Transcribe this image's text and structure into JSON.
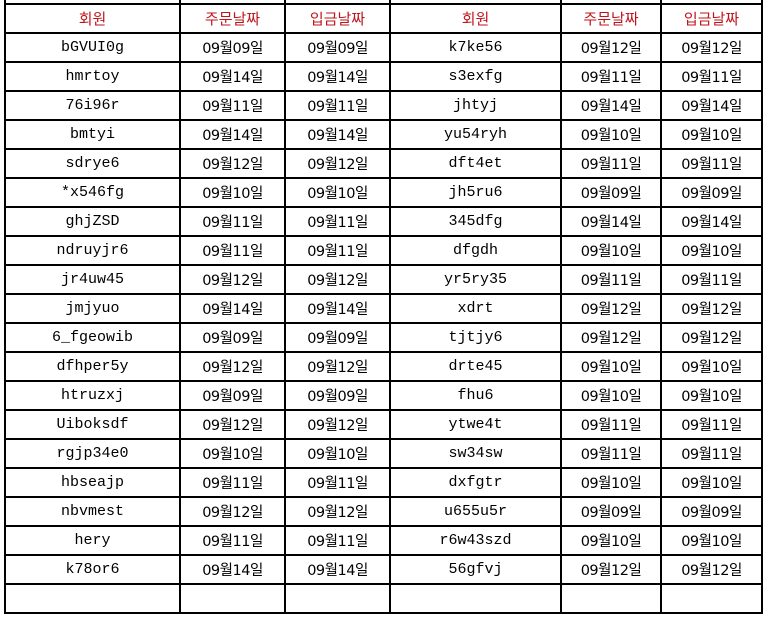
{
  "header": {
    "member": "회원",
    "order_date": "주문날짜",
    "payment_date": "입금날짜"
  },
  "colors": {
    "header_text": "#c0141c",
    "grid": "#000000"
  },
  "left_rows": [
    [
      "bGVUI0g",
      "09월09일",
      "09월09일"
    ],
    [
      "hmrtoy",
      "09월14일",
      "09월14일"
    ],
    [
      "76i96r",
      "09월11일",
      "09월11일"
    ],
    [
      "bmtyi",
      "09월14일",
      "09월14일"
    ],
    [
      "sdrye6",
      "09월12일",
      "09월12일"
    ],
    [
      "*x546fg",
      "09월10일",
      "09월10일"
    ],
    [
      "ghjZSD",
      "09월11일",
      "09월11일"
    ],
    [
      "ndruyjr6",
      "09월11일",
      "09월11일"
    ],
    [
      "jr4uw45",
      "09월12일",
      "09월12일"
    ],
    [
      "jmjyuo",
      "09월14일",
      "09월14일"
    ],
    [
      "6_fgeowib",
      "09월09일",
      "09월09일"
    ],
    [
      "dfhper5y",
      "09월12일",
      "09월12일"
    ],
    [
      "htruzxj",
      "09월09일",
      "09월09일"
    ],
    [
      "Uiboksdf",
      "09월12일",
      "09월12일"
    ],
    [
      "rgjp34e0",
      "09월10일",
      "09월10일"
    ],
    [
      "hbseajp",
      "09월11일",
      "09월11일"
    ],
    [
      "nbvmest",
      "09월12일",
      "09월12일"
    ],
    [
      "hery",
      "09월11일",
      "09월11일"
    ],
    [
      "k78or6",
      "09월14일",
      "09월14일"
    ]
  ],
  "right_rows": [
    [
      "k7ke56",
      "09월12일",
      "09월12일"
    ],
    [
      "s3exfg",
      "09월11일",
      "09월11일"
    ],
    [
      "jhtyj",
      "09월14일",
      "09월14일"
    ],
    [
      "yu54ryh",
      "09월10일",
      "09월10일"
    ],
    [
      "dft4et",
      "09월11일",
      "09월11일"
    ],
    [
      "jh5ru6",
      "09월09일",
      "09월09일"
    ],
    [
      "345dfg",
      "09월14일",
      "09월14일"
    ],
    [
      "dfgdh",
      "09월10일",
      "09월10일"
    ],
    [
      "yr5ry35",
      "09월11일",
      "09월11일"
    ],
    [
      "xdrt",
      "09월12일",
      "09월12일"
    ],
    [
      "tjtjy6",
      "09월12일",
      "09월12일"
    ],
    [
      "drte45",
      "09월10일",
      "09월10일"
    ],
    [
      "fhu6",
      "09월10일",
      "09월10일"
    ],
    [
      "ytwe4t",
      "09월11일",
      "09월11일"
    ],
    [
      "sw34sw",
      "09월11일",
      "09월11일"
    ],
    [
      "dxfgtr",
      "09월10일",
      "09월10일"
    ],
    [
      "u655u5r",
      "09월09일",
      "09월09일"
    ],
    [
      "r6w43szd",
      "09월10일",
      "09월10일"
    ],
    [
      "56gfvj",
      "09월12일",
      "09월12일"
    ]
  ]
}
